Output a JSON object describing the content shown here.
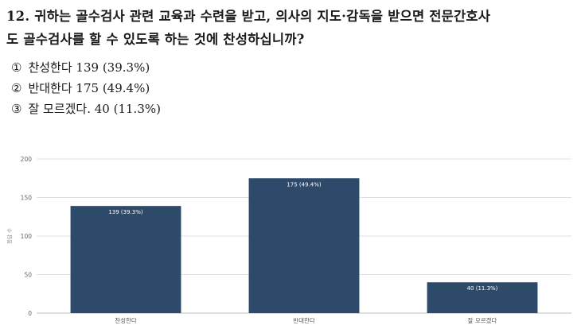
{
  "question": {
    "line1": "12. 귀하는 골수검사 관련 교육과 수련을 받고, 의사의 지도·감독을 받으면 전문간호사",
    "line2": "도 골수검사를 할 수 있도록 하는 것에 찬성하십니까?"
  },
  "options": [
    {
      "marker": "①",
      "text": "찬성한다 139 (39.3%)"
    },
    {
      "marker": "②",
      "text": "반대한다 175 (49.4%)"
    },
    {
      "marker": "③",
      "text": "잘 모르겠다. 40 (11.3%)"
    }
  ],
  "chart_data": {
    "type": "bar",
    "categories": [
      "찬성한다",
      "반대한다",
      "잘 모르겠다"
    ],
    "values": [
      139,
      175,
      40
    ],
    "data_labels": [
      "139 (39.3%)",
      "175 (49.4%)",
      "40 (11.3%)"
    ],
    "ylabel": "응답 수",
    "ylim": [
      0,
      200
    ],
    "yticks": [
      0,
      50,
      100,
      150,
      200
    ],
    "grid": true,
    "bar_color": "#2e4a6b",
    "grid_color": "#e0e0e0"
  }
}
